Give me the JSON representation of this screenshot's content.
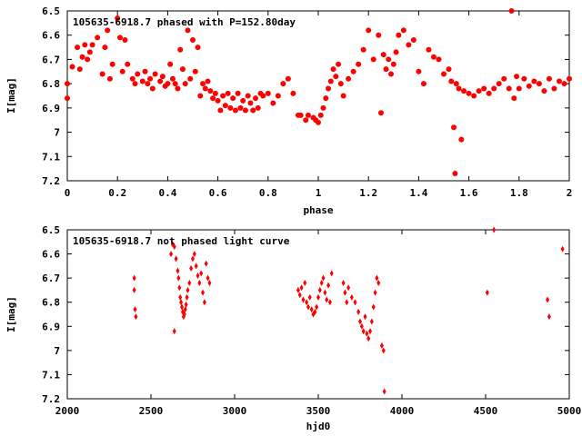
{
  "chart_data": [
    {
      "type": "scatter",
      "title": "105635-6918.7 phased with P=152.80day",
      "xlabel": "phase",
      "ylabel": "I[mag]",
      "xlim": [
        0,
        2
      ],
      "ylim": [
        7.2,
        6.5
      ],
      "y_inverted": true,
      "grid": false,
      "marker_color": "#ff0000",
      "marker_shape": "filled circle",
      "x_ticks": [
        "0",
        "0.2",
        "0.4",
        "0.6",
        "0.8",
        "1",
        "1.2",
        "1.4",
        "1.6",
        "1.8",
        "2"
      ],
      "y_ticks": [
        "6.5",
        "6.6",
        "6.7",
        "6.8",
        "6.9",
        "7",
        "7.1",
        "7.2"
      ],
      "points": [
        [
          0.0,
          6.86
        ],
        [
          0.0,
          6.8
        ],
        [
          0.02,
          6.73
        ],
        [
          0.04,
          6.65
        ],
        [
          0.05,
          6.74
        ],
        [
          0.06,
          6.69
        ],
        [
          0.07,
          6.64
        ],
        [
          0.08,
          6.7
        ],
        [
          0.09,
          6.67
        ],
        [
          0.1,
          6.64
        ],
        [
          0.12,
          6.61
        ],
        [
          0.14,
          6.76
        ],
        [
          0.15,
          6.65
        ],
        [
          0.16,
          6.58
        ],
        [
          0.17,
          6.78
        ],
        [
          0.18,
          6.72
        ],
        [
          0.2,
          6.53
        ],
        [
          0.21,
          6.61
        ],
        [
          0.22,
          6.75
        ],
        [
          0.23,
          6.62
        ],
        [
          0.24,
          6.72
        ],
        [
          0.26,
          6.78
        ],
        [
          0.27,
          6.8
        ],
        [
          0.28,
          6.76
        ],
        [
          0.3,
          6.79
        ],
        [
          0.31,
          6.75
        ],
        [
          0.32,
          6.8
        ],
        [
          0.33,
          6.78
        ],
        [
          0.34,
          6.82
        ],
        [
          0.35,
          6.76
        ],
        [
          0.37,
          6.79
        ],
        [
          0.38,
          6.77
        ],
        [
          0.39,
          6.81
        ],
        [
          0.4,
          6.8
        ],
        [
          0.41,
          6.72
        ],
        [
          0.42,
          6.78
        ],
        [
          0.43,
          6.8
        ],
        [
          0.44,
          6.82
        ],
        [
          0.45,
          6.66
        ],
        [
          0.46,
          6.74
        ],
        [
          0.47,
          6.8
        ],
        [
          0.48,
          6.58
        ],
        [
          0.49,
          6.78
        ],
        [
          0.5,
          6.62
        ],
        [
          0.51,
          6.75
        ],
        [
          0.52,
          6.65
        ],
        [
          0.53,
          6.85
        ],
        [
          0.54,
          6.8
        ],
        [
          0.55,
          6.82
        ],
        [
          0.56,
          6.79
        ],
        [
          0.57,
          6.83
        ],
        [
          0.58,
          6.86
        ],
        [
          0.59,
          6.84
        ],
        [
          0.6,
          6.87
        ],
        [
          0.61,
          6.91
        ],
        [
          0.62,
          6.85
        ],
        [
          0.63,
          6.89
        ],
        [
          0.64,
          6.84
        ],
        [
          0.65,
          6.9
        ],
        [
          0.66,
          6.86
        ],
        [
          0.67,
          6.91
        ],
        [
          0.68,
          6.84
        ],
        [
          0.69,
          6.9
        ],
        [
          0.7,
          6.87
        ],
        [
          0.71,
          6.91
        ],
        [
          0.72,
          6.85
        ],
        [
          0.73,
          6.88
        ],
        [
          0.74,
          6.91
        ],
        [
          0.75,
          6.86
        ],
        [
          0.76,
          6.9
        ],
        [
          0.77,
          6.84
        ],
        [
          0.78,
          6.85
        ],
        [
          0.8,
          6.84
        ],
        [
          0.82,
          6.88
        ],
        [
          0.84,
          6.85
        ],
        [
          0.86,
          6.8
        ],
        [
          0.88,
          6.78
        ],
        [
          0.9,
          6.84
        ],
        [
          0.92,
          6.93
        ],
        [
          0.93,
          6.93
        ],
        [
          0.95,
          6.95
        ],
        [
          0.96,
          6.93
        ],
        [
          0.98,
          6.94
        ],
        [
          0.99,
          6.95
        ],
        [
          1.0,
          6.96
        ],
        [
          1.01,
          6.93
        ],
        [
          1.02,
          6.9
        ],
        [
          1.03,
          6.86
        ],
        [
          1.04,
          6.82
        ],
        [
          1.05,
          6.79
        ],
        [
          1.06,
          6.74
        ],
        [
          1.07,
          6.77
        ],
        [
          1.08,
          6.72
        ],
        [
          1.09,
          6.8
        ],
        [
          1.1,
          6.85
        ],
        [
          1.12,
          6.78
        ],
        [
          1.14,
          6.75
        ],
        [
          1.16,
          6.72
        ],
        [
          1.18,
          6.66
        ],
        [
          1.2,
          6.58
        ],
        [
          1.22,
          6.7
        ],
        [
          1.24,
          6.6
        ],
        [
          1.25,
          6.92
        ],
        [
          1.26,
          6.68
        ],
        [
          1.27,
          6.74
        ],
        [
          1.28,
          6.7
        ],
        [
          1.29,
          6.76
        ],
        [
          1.3,
          6.72
        ],
        [
          1.31,
          6.67
        ],
        [
          1.32,
          6.6
        ],
        [
          1.34,
          6.58
        ],
        [
          1.36,
          6.64
        ],
        [
          1.38,
          6.62
        ],
        [
          1.4,
          6.75
        ],
        [
          1.42,
          6.8
        ],
        [
          1.44,
          6.66
        ],
        [
          1.46,
          6.69
        ],
        [
          1.48,
          6.7
        ],
        [
          1.5,
          6.76
        ],
        [
          1.52,
          6.74
        ],
        [
          1.53,
          6.79
        ],
        [
          1.54,
          6.98
        ],
        [
          1.545,
          7.17
        ],
        [
          1.55,
          6.8
        ],
        [
          1.56,
          6.82
        ],
        [
          1.57,
          7.03
        ],
        [
          1.58,
          6.83
        ],
        [
          1.6,
          6.84
        ],
        [
          1.62,
          6.85
        ],
        [
          1.64,
          6.83
        ],
        [
          1.66,
          6.82
        ],
        [
          1.68,
          6.84
        ],
        [
          1.7,
          6.82
        ],
        [
          1.72,
          6.8
        ],
        [
          1.74,
          6.78
        ],
        [
          1.76,
          6.82
        ],
        [
          1.77,
          6.5
        ],
        [
          1.78,
          6.86
        ],
        [
          1.79,
          6.77
        ],
        [
          1.8,
          6.82
        ],
        [
          1.82,
          6.78
        ],
        [
          1.84,
          6.81
        ],
        [
          1.86,
          6.79
        ],
        [
          1.88,
          6.8
        ],
        [
          1.9,
          6.83
        ],
        [
          1.92,
          6.78
        ],
        [
          1.94,
          6.82
        ],
        [
          1.96,
          6.79
        ],
        [
          1.98,
          6.8
        ],
        [
          2.0,
          6.78
        ]
      ]
    },
    {
      "type": "scatter",
      "title": "105635-6918.7 not phased light curve",
      "xlabel": "hjd0",
      "ylabel": "I[mag]",
      "xlim": [
        2000,
        5000
      ],
      "ylim": [
        7.2,
        6.5
      ],
      "y_inverted": true,
      "grid": false,
      "marker_color": "#ff0000",
      "marker_shape": "diamond",
      "x_ticks": [
        "2000",
        "2500",
        "3000",
        "3500",
        "4000",
        "4500",
        "5000"
      ],
      "y_ticks": [
        "6.5",
        "6.6",
        "6.7",
        "6.8",
        "6.9",
        "7",
        "7.1",
        "7.2"
      ],
      "points": [
        [
          2400,
          6.7
        ],
        [
          2400,
          6.75
        ],
        [
          2405,
          6.83
        ],
        [
          2410,
          6.86
        ],
        [
          2620,
          6.6
        ],
        [
          2630,
          6.56
        ],
        [
          2640,
          6.57
        ],
        [
          2640,
          6.92
        ],
        [
          2650,
          6.62
        ],
        [
          2660,
          6.67
        ],
        [
          2665,
          6.7
        ],
        [
          2670,
          6.74
        ],
        [
          2675,
          6.78
        ],
        [
          2680,
          6.8
        ],
        [
          2685,
          6.82
        ],
        [
          2690,
          6.84
        ],
        [
          2695,
          6.86
        ],
        [
          2700,
          6.85
        ],
        [
          2705,
          6.83
        ],
        [
          2710,
          6.81
        ],
        [
          2715,
          6.78
        ],
        [
          2720,
          6.75
        ],
        [
          2730,
          6.72
        ],
        [
          2740,
          6.66
        ],
        [
          2750,
          6.62
        ],
        [
          2760,
          6.6
        ],
        [
          2770,
          6.65
        ],
        [
          2780,
          6.69
        ],
        [
          2790,
          6.72
        ],
        [
          2800,
          6.68
        ],
        [
          2810,
          6.76
        ],
        [
          2820,
          6.8
        ],
        [
          2830,
          6.64
        ],
        [
          2840,
          6.7
        ],
        [
          2850,
          6.72
        ],
        [
          3380,
          6.75
        ],
        [
          3390,
          6.77
        ],
        [
          3400,
          6.74
        ],
        [
          3410,
          6.79
        ],
        [
          3420,
          6.72
        ],
        [
          3430,
          6.8
        ],
        [
          3440,
          6.82
        ],
        [
          3450,
          6.78
        ],
        [
          3460,
          6.83
        ],
        [
          3470,
          6.85
        ],
        [
          3480,
          6.84
        ],
        [
          3490,
          6.82
        ],
        [
          3500,
          6.78
        ],
        [
          3510,
          6.75
        ],
        [
          3520,
          6.72
        ],
        [
          3530,
          6.7
        ],
        [
          3540,
          6.76
        ],
        [
          3550,
          6.79
        ],
        [
          3560,
          6.73
        ],
        [
          3570,
          6.8
        ],
        [
          3580,
          6.68
        ],
        [
          3650,
          6.72
        ],
        [
          3660,
          6.76
        ],
        [
          3670,
          6.8
        ],
        [
          3680,
          6.74
        ],
        [
          3700,
          6.78
        ],
        [
          3720,
          6.8
        ],
        [
          3740,
          6.84
        ],
        [
          3750,
          6.88
        ],
        [
          3760,
          6.9
        ],
        [
          3770,
          6.92
        ],
        [
          3780,
          6.86
        ],
        [
          3790,
          6.93
        ],
        [
          3800,
          6.95
        ],
        [
          3810,
          6.92
        ],
        [
          3820,
          6.88
        ],
        [
          3830,
          6.82
        ],
        [
          3840,
          6.76
        ],
        [
          3850,
          6.7
        ],
        [
          3860,
          6.72
        ],
        [
          3880,
          6.98
        ],
        [
          3890,
          7.0
        ],
        [
          3895,
          7.17
        ],
        [
          4510,
          6.76
        ],
        [
          4550,
          6.5
        ],
        [
          4870,
          6.79
        ],
        [
          4880,
          6.86
        ],
        [
          4960,
          6.58
        ]
      ]
    }
  ]
}
